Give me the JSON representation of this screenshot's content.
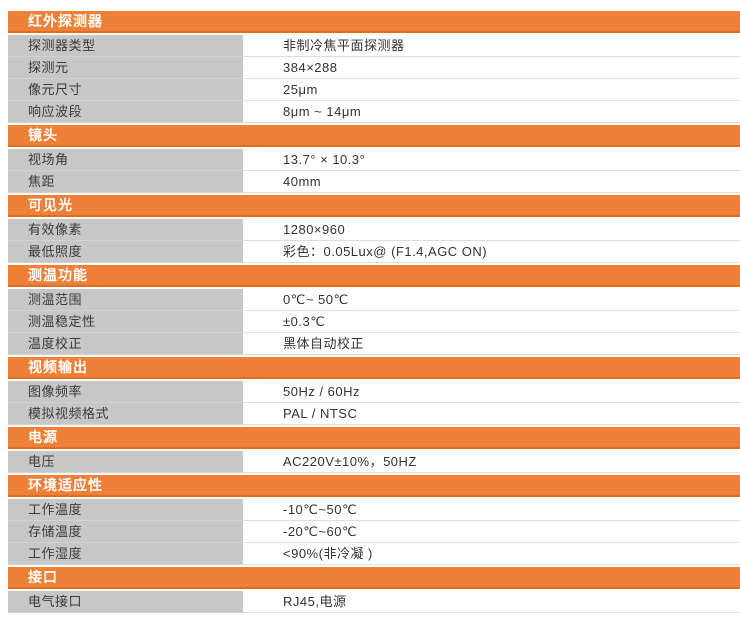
{
  "colors": {
    "accent": "#ee8137",
    "accent_dark": "#e06d26",
    "label_bg": "#c7c7c7",
    "label_border": "#d2d2d2",
    "value_border": "#dddddd",
    "header_text": "#ffffff",
    "body_text": "#333333"
  },
  "table": {
    "sections": [
      {
        "title": "红外探测器",
        "rows": [
          {
            "label": "探测器类型",
            "value": "非制冷焦平面探测器"
          },
          {
            "label": "探测元",
            "value": "384×288"
          },
          {
            "label": "像元尺寸",
            "value": "25μm"
          },
          {
            "label": "响应波段",
            "value": "8μm ~ 14μm"
          }
        ]
      },
      {
        "title": "镜头",
        "rows": [
          {
            "label": "视场角",
            "value": "13.7°  × 10.3°"
          },
          {
            "label": "焦距",
            "value": "40mm"
          }
        ]
      },
      {
        "title": "可见光",
        "rows": [
          {
            "label": "有效像素",
            "value": "1280×960"
          },
          {
            "label": "最低照度",
            "value": "彩色：0.05Lux@ (F1.4,AGC ON)"
          }
        ]
      },
      {
        "title": "测温功能",
        "rows": [
          {
            "label": "测温范围",
            "value": "0℃~ 50℃"
          },
          {
            "label": "测温稳定性",
            "value": "±0.3℃"
          },
          {
            "label": "温度校正",
            "value": "黑体自动校正"
          }
        ]
      },
      {
        "title": "视频输出",
        "rows": [
          {
            "label": "图像频率",
            "value": "50Hz / 60Hz"
          },
          {
            "label": "模拟视频格式",
            "value": "PAL / NTSC"
          }
        ]
      },
      {
        "title": "电源",
        "rows": [
          {
            "label": "电压",
            "value": "AC220V±10%，50HZ"
          }
        ]
      },
      {
        "title": "环境适应性",
        "rows": [
          {
            "label": "工作温度",
            "value": "-10℃~50℃"
          },
          {
            "label": "存储温度",
            "value": "-20℃~60℃"
          },
          {
            "label": "工作湿度",
            "value": "<90%(非冷凝 )"
          }
        ]
      },
      {
        "title": "接口",
        "rows": [
          {
            "label": "电气接口",
            "value": "RJ45,电源"
          }
        ]
      }
    ]
  }
}
